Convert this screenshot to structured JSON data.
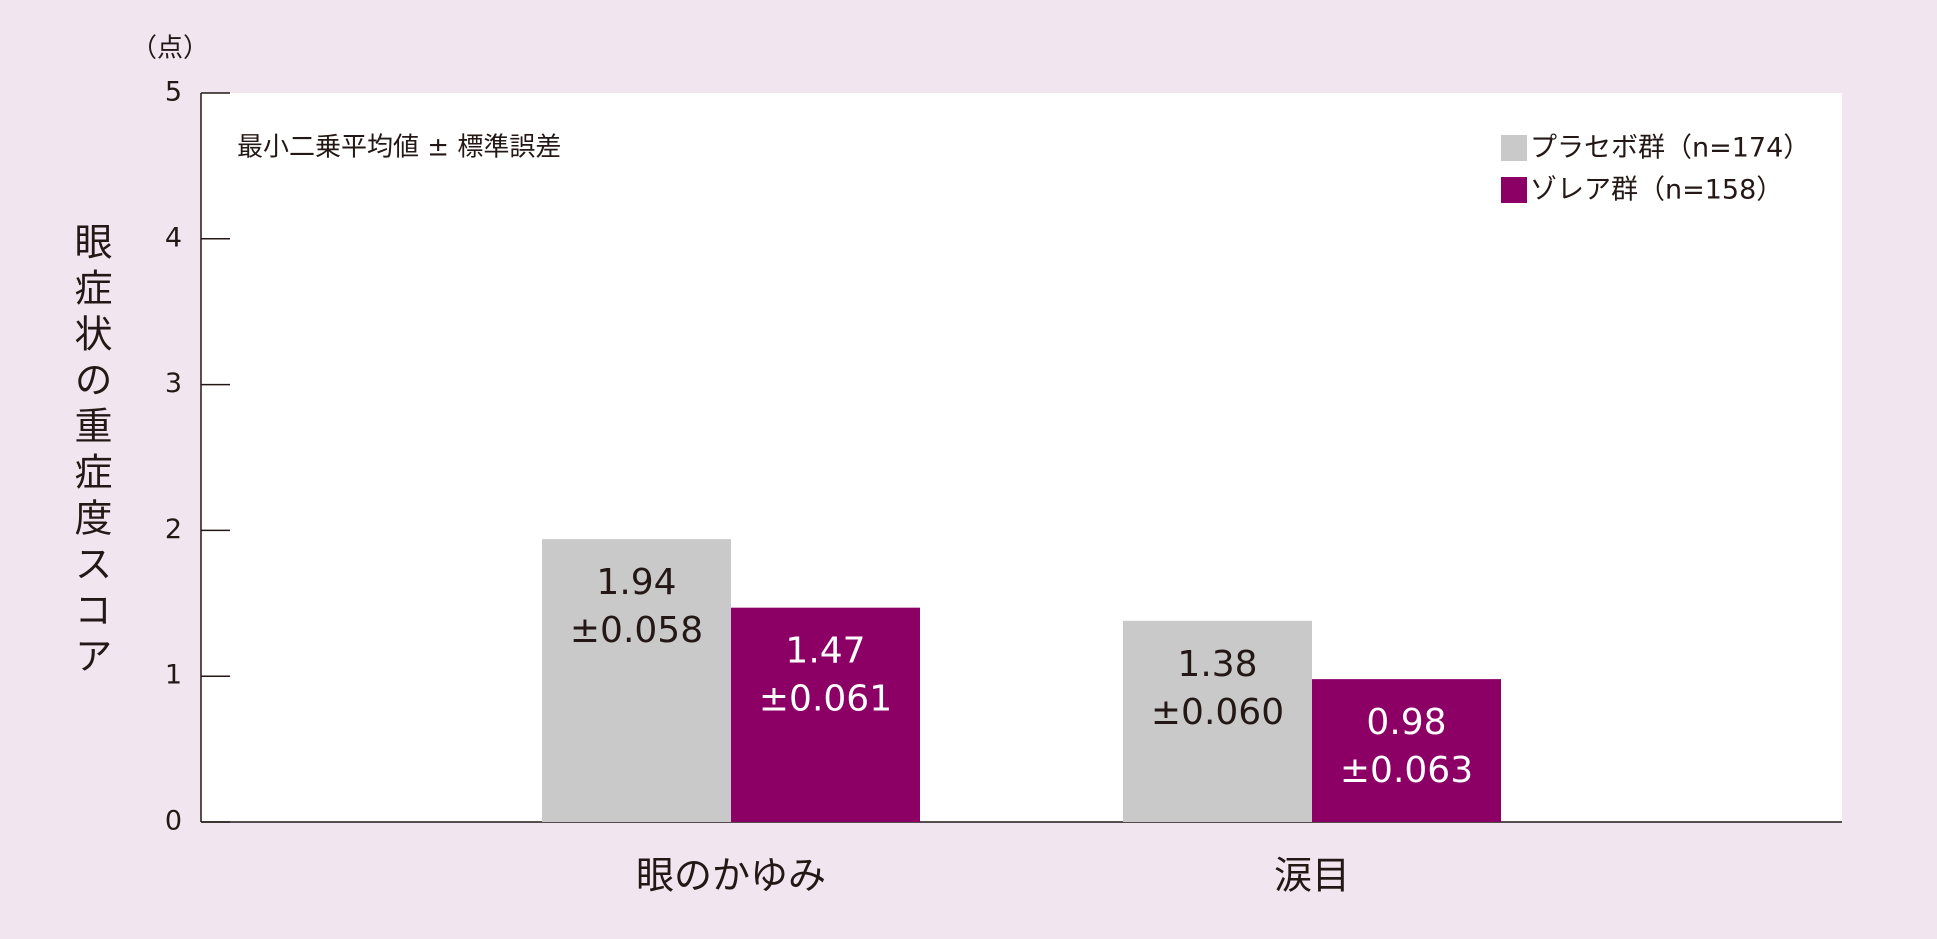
{
  "chart_data": {
    "type": "bar",
    "y_label": "眼症状の重症度スコア",
    "y_unit": "（点）",
    "note": "最小二乗平均値 ± 標準誤差",
    "categories": [
      "眼のかゆみ",
      "涙目"
    ],
    "series": [
      {
        "name": "プラセボ群（n=174）",
        "color": "#c9c9c9",
        "label_color": "#231815",
        "values": [
          1.94,
          1.38
        ],
        "error_labels": [
          "±0.058",
          "±0.060"
        ]
      },
      {
        "name": "ゾレア群（n=158）",
        "color": "#8c0066",
        "label_color": "#ffffff",
        "values": [
          1.47,
          0.98
        ],
        "error_labels": [
          "±0.061",
          "±0.063"
        ]
      }
    ],
    "ylim": [
      0,
      5
    ],
    "yticks": [
      0,
      1,
      2,
      3,
      4,
      5
    ],
    "legend": "top-right"
  }
}
